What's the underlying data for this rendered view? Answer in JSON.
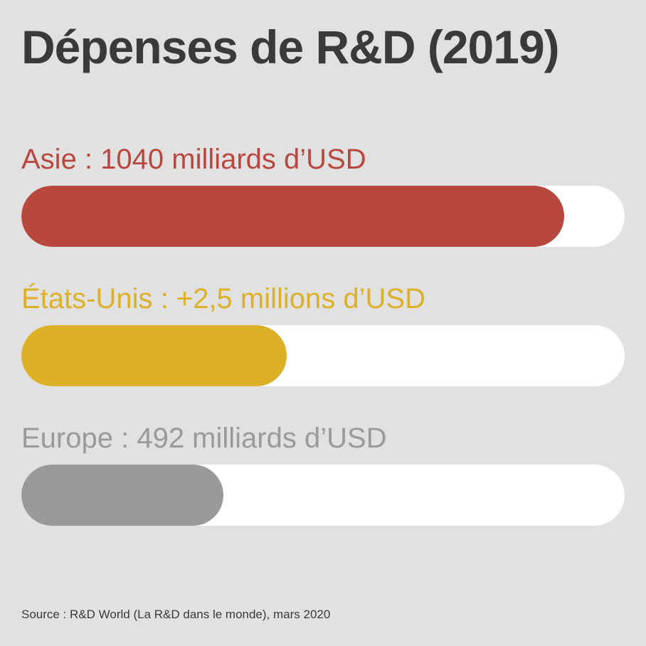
{
  "chart_data": {
    "type": "bar",
    "orientation": "horizontal",
    "title": "Dépenses de R&D (2019)",
    "categories": [
      "Asie",
      "États-Unis",
      "Europe"
    ],
    "values": [
      1040,
      2.5,
      492
    ],
    "value_units": [
      "milliards d’USD",
      "millions d’USD",
      "milliards d’USD"
    ],
    "background": "#e2e1e1",
    "track_color": "#ffffff",
    "grid": false,
    "legend": false,
    "rows": [
      {
        "category": "Asie",
        "label": "Asie : 1040 milliards d’USD",
        "value_text": "1040 milliards d’USD",
        "color": "#b8483f",
        "fill_percent": 90
      },
      {
        "category": "États-Unis",
        "label": "États-Unis : +2,5 millions d’USD",
        "value_text": "+2,5 millions d’USD",
        "color": "#dcb128",
        "fill_percent": 44
      },
      {
        "category": "Europe",
        "label": "Europe : 492 milliards d’USD",
        "value_text": "492 milliards d’USD",
        "color": "#9b9a9a",
        "fill_percent": 33.5
      }
    ],
    "source": "Source : R&D World (La R&D dans le monde), mars 2020"
  }
}
